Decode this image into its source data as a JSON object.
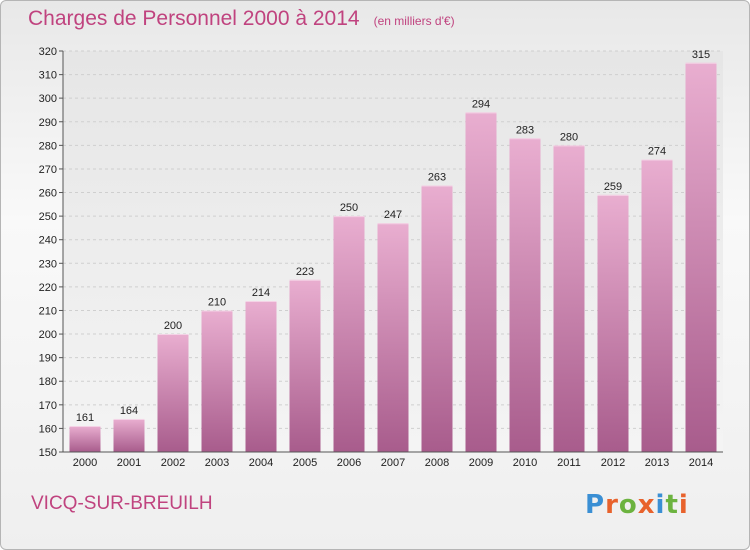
{
  "header": {
    "title": "Charges de Personnel 2000 à 2014",
    "subtitle": "(en milliers d'€)"
  },
  "footer": {
    "commune": "VICQ-SUR-BREUILH",
    "logo_text": "Proxiti"
  },
  "colors": {
    "title": "#c0437f",
    "bar_top": "#e9aed0",
    "bar_bottom": "#a85c8c",
    "grid": "#cfcfcf",
    "logo_letters": [
      "#3a8fd4",
      "#e8622c",
      "#6cb33f",
      "#e8622c",
      "#3a8fd4",
      "#6cb33f",
      "#e8622c"
    ]
  },
  "chart_data": {
    "type": "bar",
    "title": "Charges de Personnel 2000 à 2014",
    "subtitle": "(en milliers d'€)",
    "xlabel": "",
    "ylabel": "",
    "categories": [
      "2000",
      "2001",
      "2002",
      "2003",
      "2004",
      "2005",
      "2006",
      "2007",
      "2008",
      "2009",
      "2010",
      "2011",
      "2012",
      "2013",
      "2014"
    ],
    "values": [
      161,
      164,
      200,
      210,
      214,
      223,
      250,
      247,
      263,
      294,
      283,
      280,
      259,
      274,
      315
    ],
    "ylim": [
      150,
      320
    ],
    "yticks": [
      150,
      160,
      170,
      180,
      190,
      200,
      210,
      220,
      230,
      240,
      250,
      260,
      270,
      280,
      290,
      300,
      310,
      320
    ],
    "grid": true,
    "data_labels": true
  }
}
